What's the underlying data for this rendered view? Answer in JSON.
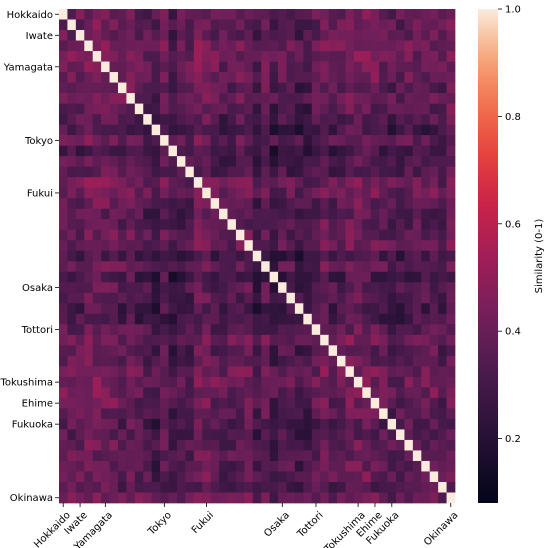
{
  "chart_data": {
    "type": "heatmap",
    "title": "",
    "xlabel": "",
    "ylabel": "",
    "n_cells": 47,
    "tick_labels": [
      {
        "index": 0,
        "label": "Hokkaido"
      },
      {
        "index": 2,
        "label": "Iwate"
      },
      {
        "index": 5,
        "label": "Yamagata"
      },
      {
        "index": 12,
        "label": "Tokyo"
      },
      {
        "index": 17,
        "label": "Fukui"
      },
      {
        "index": 26,
        "label": "Osaka"
      },
      {
        "index": 30,
        "label": "Tottori"
      },
      {
        "index": 35,
        "label": "Tokushima"
      },
      {
        "index": 37,
        "label": "Ehime"
      },
      {
        "index": 39,
        "label": "Fukuoka"
      },
      {
        "index": 46,
        "label": "Okinawa"
      }
    ],
    "colorbar": {
      "label": "Similarity (0-1)",
      "min": 0.08,
      "max": 1.0,
      "ticks": [
        0.2,
        0.4,
        0.6,
        0.8,
        1.0
      ],
      "tick_labels": [
        "0.2",
        "0.4",
        "0.6",
        "0.8",
        "1.0"
      ],
      "colormap": "rocket"
    },
    "diagonal_value": 1.0,
    "value_range_offdiagonal": [
      0.1,
      0.62
    ]
  }
}
